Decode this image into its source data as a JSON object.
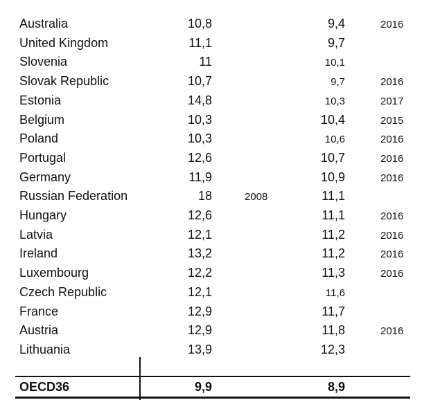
{
  "rows": [
    {
      "country": "Australia",
      "value1": "10,8",
      "year1": "",
      "value2": "9,4",
      "value2_small": false,
      "year2": "2016"
    },
    {
      "country": "United Kingdom",
      "value1": "11,1",
      "year1": "",
      "value2": "9,7",
      "value2_small": false,
      "year2": ""
    },
    {
      "country": "Slovenia",
      "value1": "11",
      "year1": "",
      "value2": "10,1",
      "value2_small": true,
      "year2": ""
    },
    {
      "country": "Slovak Republic",
      "value1": "10,7",
      "year1": "",
      "value2": "9,7",
      "value2_small": true,
      "year2": "2016"
    },
    {
      "country": "Estonia",
      "value1": "14,8",
      "year1": "",
      "value2": "10,3",
      "value2_small": true,
      "year2": "2017"
    },
    {
      "country": "Belgium",
      "value1": "10,3",
      "year1": "",
      "value2": "10,4",
      "value2_small": false,
      "year2": "2015"
    },
    {
      "country": "Poland",
      "value1": "10,3",
      "year1": "",
      "value2": "10,6",
      "value2_small": true,
      "year2": "2016"
    },
    {
      "country": "Portugal",
      "value1": "12,6",
      "year1": "",
      "value2": "10,7",
      "value2_small": false,
      "year2": "2016"
    },
    {
      "country": "Germany",
      "value1": "11,9",
      "year1": "",
      "value2": "10,9",
      "value2_small": false,
      "year2": "2016"
    },
    {
      "country": "Russian Federation",
      "value1": "18",
      "year1": "2008",
      "value2": "11,1",
      "value2_small": false,
      "year2": ""
    },
    {
      "country": "Hungary",
      "value1": "12,6",
      "year1": "",
      "value2": "11,1",
      "value2_small": false,
      "year2": "2016"
    },
    {
      "country": "Latvia",
      "value1": "12,1",
      "year1": "",
      "value2": "11,2",
      "value2_small": false,
      "year2": "2016"
    },
    {
      "country": "Ireland",
      "value1": "13,2",
      "year1": "",
      "value2": "11,2",
      "value2_small": false,
      "year2": "2016"
    },
    {
      "country": "Luxembourg",
      "value1": "12,2",
      "year1": "",
      "value2": "11,3",
      "value2_small": false,
      "year2": "2016"
    },
    {
      "country": "Czech Republic",
      "value1": "12,1",
      "year1": "",
      "value2": "11,6",
      "value2_small": true,
      "year2": ""
    },
    {
      "country": "France",
      "value1": "12,9",
      "year1": "",
      "value2": "11,7",
      "value2_small": false,
      "year2": ""
    },
    {
      "country": "Austria",
      "value1": "12,9",
      "year1": "",
      "value2": "11,8",
      "value2_small": false,
      "year2": "2016"
    },
    {
      "country": "Lithuania",
      "value1": "13,9",
      "year1": "",
      "value2": "12,3",
      "value2_small": false,
      "year2": ""
    }
  ],
  "total": {
    "country": "OECD36",
    "value1": "9,9",
    "value2": "8,9"
  }
}
